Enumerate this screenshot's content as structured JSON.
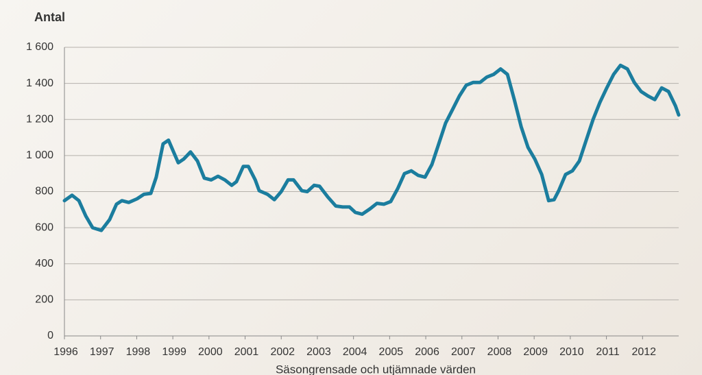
{
  "chart_data": {
    "type": "line",
    "title": "Antal",
    "caption": "Säsongrensade och utjämnade värden",
    "x": [
      1996.0,
      1996.21,
      1996.4,
      1996.59,
      1996.78,
      1997.02,
      1997.25,
      1997.44,
      1997.59,
      1997.78,
      1998.01,
      1998.2,
      1998.39,
      1998.54,
      1998.73,
      1998.88,
      1999.15,
      1999.3,
      1999.49,
      1999.68,
      1999.87,
      2000.06,
      2000.25,
      2000.44,
      2000.63,
      2000.76,
      2000.95,
      2001.09,
      2001.28,
      2001.39,
      2001.62,
      2001.81,
      2002.0,
      2002.19,
      2002.34,
      2002.57,
      2002.72,
      2002.91,
      2003.06,
      2003.29,
      2003.51,
      2003.7,
      2003.89,
      2004.05,
      2004.24,
      2004.46,
      2004.65,
      2004.84,
      2005.03,
      2005.22,
      2005.41,
      2005.6,
      2005.79,
      2005.98,
      2006.17,
      2006.36,
      2006.55,
      2006.74,
      2006.93,
      2007.12,
      2007.31,
      2007.5,
      2007.69,
      2007.88,
      2008.07,
      2008.26,
      2008.45,
      2008.64,
      2008.83,
      2009.02,
      2009.21,
      2009.4,
      2009.55,
      2009.68,
      2009.87,
      2010.06,
      2010.25,
      2010.44,
      2010.63,
      2010.82,
      2011.01,
      2011.2,
      2011.39,
      2011.58,
      2011.77,
      2011.96,
      2012.15,
      2012.34,
      2012.53,
      2012.72,
      2012.91,
      2013.0
    ],
    "series": [
      {
        "name": "Antal",
        "color": "#1b7d9e",
        "values": [
          750,
          780,
          750,
          665,
          600,
          585,
          645,
          730,
          750,
          740,
          760,
          785,
          790,
          880,
          1065,
          1085,
          960,
          980,
          1020,
          970,
          875,
          865,
          885,
          865,
          835,
          855,
          940,
          940,
          865,
          805,
          785,
          755,
          800,
          865,
          865,
          805,
          800,
          835,
          830,
          770,
          720,
          715,
          715,
          685,
          675,
          705,
          735,
          730,
          745,
          815,
          900,
          915,
          890,
          880,
          950,
          1065,
          1180,
          1255,
          1330,
          1390,
          1405,
          1405,
          1435,
          1450,
          1480,
          1450,
          1310,
          1160,
          1045,
          980,
          895,
          750,
          755,
          805,
          895,
          915,
          970,
          1085,
          1200,
          1295,
          1375,
          1450,
          1500,
          1480,
          1405,
          1355,
          1330,
          1310,
          1375,
          1355,
          1275,
          1225
        ]
      }
    ],
    "xlim": [
      1996,
      2013
    ],
    "xticks": [
      1996,
      1997,
      1998,
      1999,
      2000,
      2001,
      2002,
      2003,
      2004,
      2005,
      2006,
      2007,
      2008,
      2009,
      2010,
      2011,
      2012
    ],
    "ylim": [
      0,
      1600
    ],
    "yticks": [
      0,
      200,
      400,
      600,
      800,
      {
        "value": 1000,
        "label": "1 000"
      },
      {
        "value": 1200,
        "label": "1 200"
      },
      {
        "value": 1400,
        "label": "1 400"
      },
      {
        "value": 1600,
        "label": "1 600"
      }
    ],
    "grid": true
  }
}
